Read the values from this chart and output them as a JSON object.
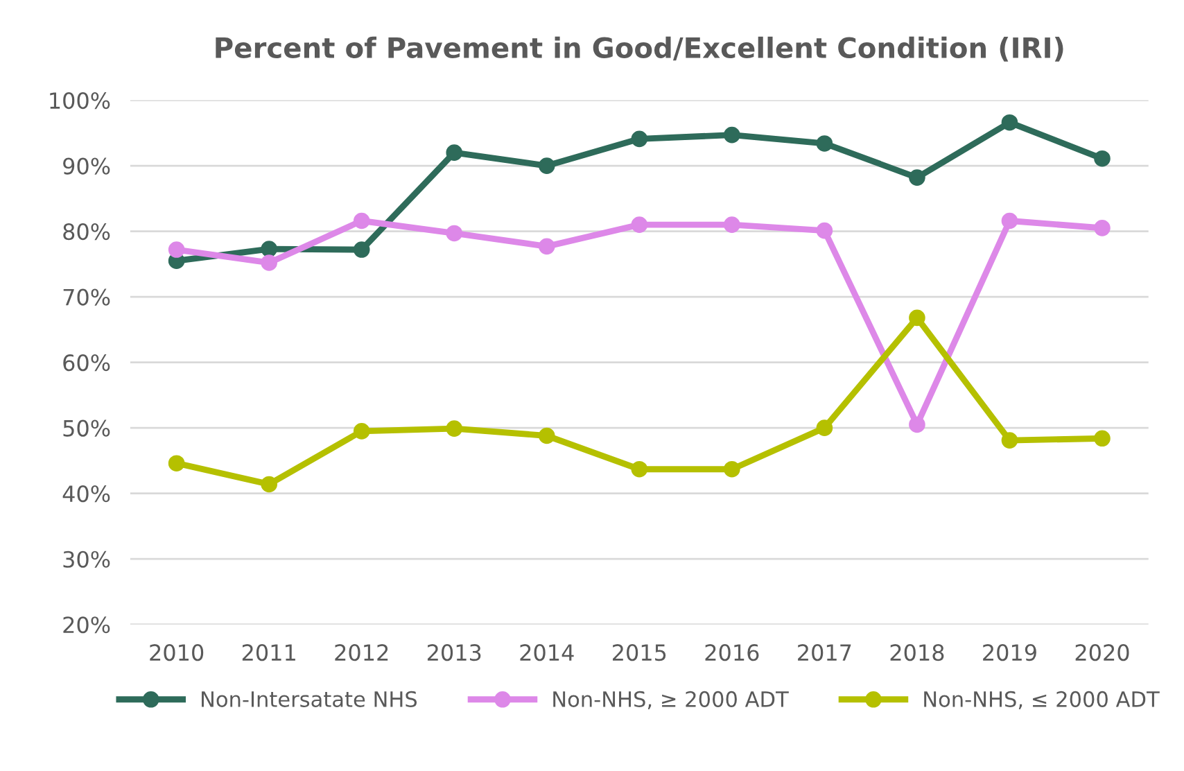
{
  "chart_data": {
    "type": "line",
    "title": "Percent of Pavement in Good/Excellent Condition (IRI)",
    "categories": [
      "2010",
      "2011",
      "2012",
      "2013",
      "2014",
      "2015",
      "2016",
      "2017",
      "2018",
      "2019",
      "2020"
    ],
    "series": [
      {
        "name": "Non-Intersatate NHS",
        "color": "#2e6b5a",
        "values": [
          75.5,
          77.3,
          77.2,
          92.0,
          90.0,
          94.1,
          94.7,
          93.4,
          88.2,
          96.6,
          91.1
        ]
      },
      {
        "name": "Non-NHS, ≥ 2000 ADT",
        "color": "#dd88e8",
        "values": [
          77.2,
          75.2,
          81.6,
          79.7,
          77.7,
          81.0,
          81.0,
          80.1,
          50.5,
          81.6,
          80.5
        ]
      },
      {
        "name": "Non-NHS, ≤ 2000 ADT",
        "color": "#b5c000",
        "values": [
          44.6,
          41.4,
          49.5,
          49.9,
          48.8,
          43.7,
          43.7,
          50.0,
          66.8,
          48.1,
          48.4
        ]
      }
    ],
    "ylim": [
      20,
      100
    ],
    "yticks": [
      {
        "value": 20,
        "label": "20%"
      },
      {
        "value": 30,
        "label": "30%"
      },
      {
        "value": 40,
        "label": "40%"
      },
      {
        "value": 50,
        "label": "50%"
      },
      {
        "value": 60,
        "label": "60%"
      },
      {
        "value": 70,
        "label": "70%"
      },
      {
        "value": 80,
        "label": "80%"
      },
      {
        "value": 90,
        "label": "90%"
      },
      {
        "value": 100,
        "label": "100%"
      }
    ],
    "grid": "y",
    "legend": "bottom",
    "marker": "circle",
    "line_style": "solid"
  }
}
